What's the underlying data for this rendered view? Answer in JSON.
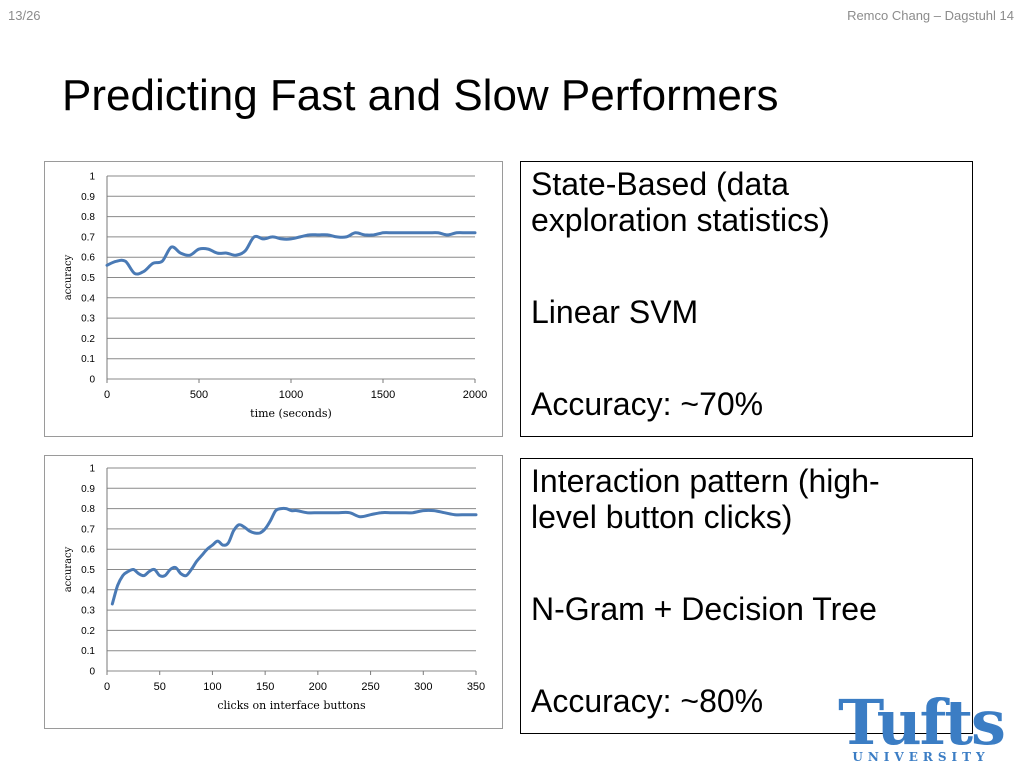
{
  "header": {
    "slide_number": "13/26",
    "footer": "Remco Chang – Dagstuhl 14"
  },
  "title": "Predicting Fast and Slow Performers",
  "box1": {
    "line1": "State-Based (data",
    "line2": "exploration statistics)",
    "line3": "Linear SVM",
    "line4": "Accuracy: ~70%"
  },
  "box2": {
    "line1": "Interaction pattern (high-",
    "line2": "level button clicks)",
    "line3": "N-Gram + Decision Tree",
    "line4": "Accuracy: ~80%"
  },
  "logo": {
    "main": "Tufts",
    "sub": "UNIVERSITY"
  },
  "chart_data": [
    {
      "type": "line",
      "title": "",
      "xlabel": "time (seconds)",
      "ylabel": "accuracy",
      "xlim": [
        0,
        2000
      ],
      "ylim": [
        0,
        1
      ],
      "xticks": [
        0,
        500,
        1000,
        1500,
        2000
      ],
      "yticks": [
        0,
        0.1,
        0.2,
        0.3,
        0.4,
        0.5,
        0.6,
        0.7,
        0.8,
        0.9,
        1
      ],
      "grid": true,
      "color": "#4a7ab5",
      "series": [
        {
          "x": [
            0,
            50,
            100,
            150,
            200,
            250,
            300,
            350,
            400,
            450,
            500,
            550,
            600,
            650,
            700,
            750,
            800,
            850,
            900,
            950,
            1000,
            1050,
            1100,
            1150,
            1200,
            1250,
            1300,
            1350,
            1400,
            1450,
            1500,
            1550,
            1600,
            1650,
            1700,
            1750,
            1800,
            1850,
            1900,
            1950,
            2000
          ],
          "values": [
            0.56,
            0.58,
            0.58,
            0.52,
            0.53,
            0.57,
            0.58,
            0.65,
            0.62,
            0.61,
            0.64,
            0.64,
            0.62,
            0.62,
            0.61,
            0.63,
            0.7,
            0.69,
            0.7,
            0.69,
            0.69,
            0.7,
            0.71,
            0.71,
            0.71,
            0.7,
            0.7,
            0.72,
            0.71,
            0.71,
            0.72,
            0.72,
            0.72,
            0.72,
            0.72,
            0.72,
            0.72,
            0.71,
            0.72,
            0.72,
            0.72
          ]
        }
      ]
    },
    {
      "type": "line",
      "title": "",
      "xlabel": "clicks on interface buttons",
      "ylabel": "accuracy",
      "xlim": [
        0,
        350
      ],
      "ylim": [
        0,
        1
      ],
      "xticks": [
        0,
        50,
        100,
        150,
        200,
        250,
        300,
        350
      ],
      "yticks": [
        0,
        0.1,
        0.2,
        0.3,
        0.4,
        0.5,
        0.6,
        0.7,
        0.8,
        0.9,
        1
      ],
      "grid": true,
      "color": "#4a7ab5",
      "series": [
        {
          "x": [
            5,
            10,
            15,
            20,
            25,
            30,
            35,
            40,
            45,
            50,
            55,
            60,
            65,
            70,
            75,
            80,
            85,
            90,
            95,
            100,
            105,
            110,
            115,
            120,
            125,
            130,
            135,
            140,
            145,
            150,
            155,
            160,
            165,
            170,
            175,
            180,
            190,
            200,
            210,
            220,
            230,
            240,
            250,
            260,
            270,
            280,
            290,
            300,
            310,
            320,
            330,
            340,
            350
          ],
          "values": [
            0.33,
            0.42,
            0.47,
            0.49,
            0.5,
            0.48,
            0.47,
            0.49,
            0.5,
            0.47,
            0.47,
            0.5,
            0.51,
            0.48,
            0.47,
            0.5,
            0.54,
            0.57,
            0.6,
            0.62,
            0.64,
            0.62,
            0.63,
            0.69,
            0.72,
            0.71,
            0.69,
            0.68,
            0.68,
            0.7,
            0.74,
            0.79,
            0.8,
            0.8,
            0.79,
            0.79,
            0.78,
            0.78,
            0.78,
            0.78,
            0.78,
            0.76,
            0.77,
            0.78,
            0.78,
            0.78,
            0.78,
            0.79,
            0.79,
            0.78,
            0.77,
            0.77,
            0.77
          ]
        }
      ]
    }
  ]
}
